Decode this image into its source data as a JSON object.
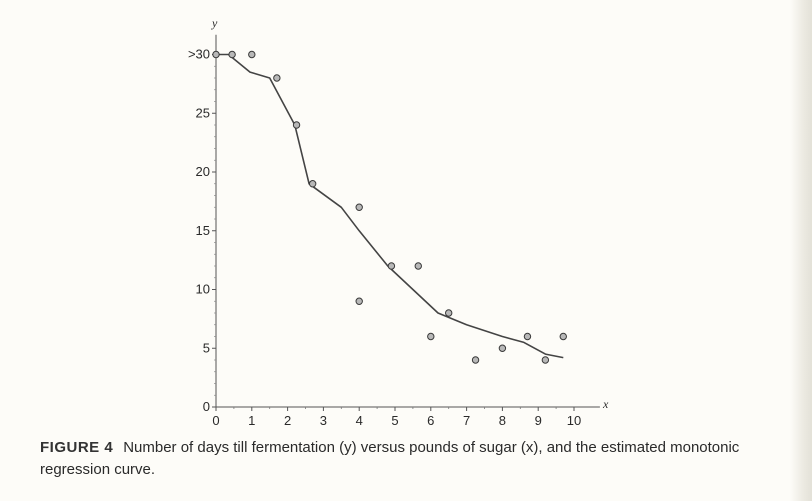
{
  "chart_data": {
    "type": "scatter",
    "title": "",
    "xlabel": "x",
    "ylabel": "y",
    "xlim": [
      0,
      10.5
    ],
    "ylim": [
      0,
      31
    ],
    "x_ticks": [
      0,
      1,
      2,
      3,
      4,
      5,
      6,
      7,
      8,
      9,
      10
    ],
    "y_ticks": [
      0,
      5,
      10,
      15,
      20,
      25,
      30
    ],
    "x_tick_labels": [
      "0",
      "1",
      "2",
      "3",
      "4",
      "5",
      "6",
      "7",
      "8",
      "9",
      "10"
    ],
    "y_tick_labels": [
      "0",
      "5",
      "10",
      "15",
      "20",
      "25",
      ">30"
    ],
    "grid": false,
    "points": [
      {
        "x": 0.0,
        "y": 30
      },
      {
        "x": 0.45,
        "y": 30
      },
      {
        "x": 1.0,
        "y": 30
      },
      {
        "x": 1.7,
        "y": 28
      },
      {
        "x": 2.25,
        "y": 24
      },
      {
        "x": 2.7,
        "y": 19
      },
      {
        "x": 4.0,
        "y": 17
      },
      {
        "x": 4.0,
        "y": 9
      },
      {
        "x": 4.9,
        "y": 12
      },
      {
        "x": 5.65,
        "y": 12
      },
      {
        "x": 6.0,
        "y": 6
      },
      {
        "x": 6.5,
        "y": 8
      },
      {
        "x": 7.25,
        "y": 4
      },
      {
        "x": 8.0,
        "y": 5
      },
      {
        "x": 8.7,
        "y": 6
      },
      {
        "x": 9.2,
        "y": 4
      },
      {
        "x": 9.7,
        "y": 6
      }
    ],
    "curve": [
      {
        "x": 0.0,
        "y": 30
      },
      {
        "x": 0.35,
        "y": 30
      },
      {
        "x": 0.95,
        "y": 28.5
      },
      {
        "x": 1.5,
        "y": 28
      },
      {
        "x": 2.2,
        "y": 24
      },
      {
        "x": 2.6,
        "y": 19
      },
      {
        "x": 3.5,
        "y": 17
      },
      {
        "x": 4.0,
        "y": 15
      },
      {
        "x": 4.8,
        "y": 12
      },
      {
        "x": 5.5,
        "y": 10
      },
      {
        "x": 6.2,
        "y": 8
      },
      {
        "x": 7.0,
        "y": 7
      },
      {
        "x": 8.0,
        "y": 6
      },
      {
        "x": 8.6,
        "y": 5.5
      },
      {
        "x": 9.2,
        "y": 4.5
      },
      {
        "x": 9.7,
        "y": 4.2
      }
    ]
  },
  "caption": {
    "label": "FIGURE 4",
    "text": "Number of days till fermentation (y) versus pounds of sugar (x), and the estimated monotonic regression curve."
  }
}
